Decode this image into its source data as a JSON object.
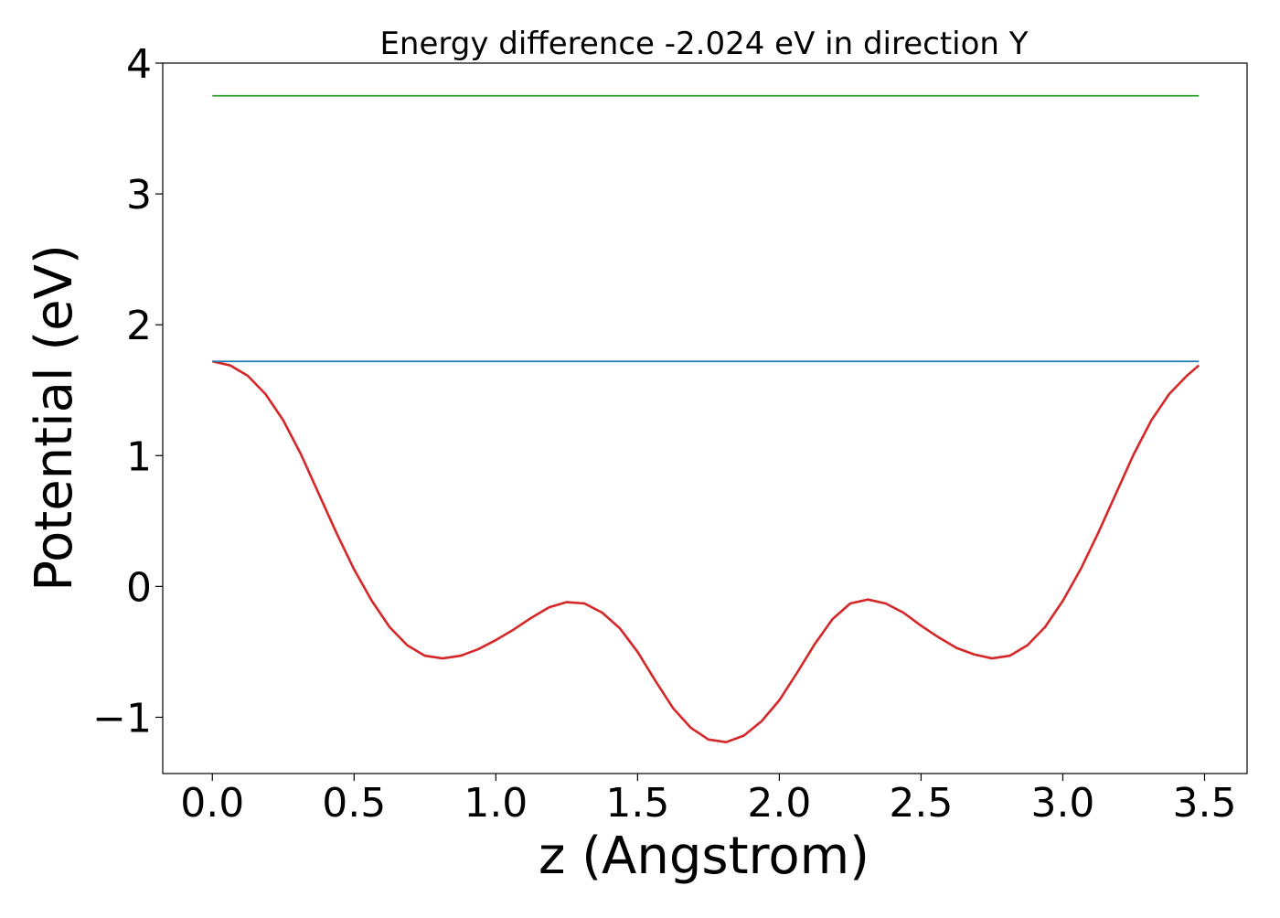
{
  "chart_data": {
    "type": "line",
    "title": "Energy difference -2.024 eV in direction Y",
    "xlabel": "z (Angstrom)",
    "ylabel": "Potential (eV)",
    "xlim": [
      -0.175,
      3.65
    ],
    "ylim": [
      -1.43,
      4.0
    ],
    "xticks": [
      0.0,
      0.5,
      1.0,
      1.5,
      2.0,
      2.5,
      3.0,
      3.5
    ],
    "xtick_labels": [
      "0.0",
      "0.5",
      "1.0",
      "1.5",
      "2.0",
      "2.5",
      "3.0",
      "3.5"
    ],
    "yticks": [
      -1,
      0,
      1,
      2,
      3,
      4
    ],
    "ytick_labels": [
      "−1",
      "0",
      "1",
      "2",
      "3",
      "4"
    ],
    "grid": false,
    "series": [
      {
        "color": "#d62728",
        "x": [
          0.0,
          0.0625,
          0.125,
          0.1875,
          0.25,
          0.3125,
          0.375,
          0.4375,
          0.5,
          0.5625,
          0.625,
          0.6875,
          0.75,
          0.8125,
          0.875,
          0.9375,
          1.0,
          1.0625,
          1.125,
          1.1875,
          1.25,
          1.3125,
          1.375,
          1.4375,
          1.5,
          1.5625,
          1.625,
          1.6875,
          1.75,
          1.8125,
          1.875,
          1.9375,
          2.0,
          2.0625,
          2.125,
          2.1875,
          2.25,
          2.3125,
          2.375,
          2.4375,
          2.5,
          2.5625,
          2.625,
          2.6875,
          2.75,
          2.8125,
          2.875,
          2.9375,
          3.0,
          3.0625,
          3.125,
          3.1875,
          3.25,
          3.3125,
          3.375,
          3.4375,
          3.48
        ],
        "y": [
          1.72,
          1.69,
          1.61,
          1.47,
          1.27,
          1.01,
          0.71,
          0.41,
          0.13,
          -0.11,
          -0.31,
          -0.45,
          -0.53,
          -0.55,
          -0.53,
          -0.48,
          -0.41,
          -0.33,
          -0.24,
          -0.16,
          -0.12,
          -0.13,
          -0.2,
          -0.32,
          -0.5,
          -0.72,
          -0.93,
          -1.08,
          -1.17,
          -1.19,
          -1.14,
          -1.03,
          -0.87,
          -0.66,
          -0.44,
          -0.25,
          -0.13,
          -0.1,
          -0.13,
          -0.2,
          -0.3,
          -0.39,
          -0.47,
          -0.52,
          -0.55,
          -0.53,
          -0.45,
          -0.31,
          -0.11,
          0.13,
          0.41,
          0.71,
          1.01,
          1.27,
          1.47,
          1.61,
          1.69
        ]
      },
      {
        "color": "#1f77b4",
        "x": [
          0.0,
          3.48
        ],
        "y": [
          1.72,
          1.72
        ]
      },
      {
        "color": "#2ca02c",
        "x": [
          0.0,
          3.48
        ],
        "y": [
          3.75,
          3.75
        ]
      }
    ]
  }
}
